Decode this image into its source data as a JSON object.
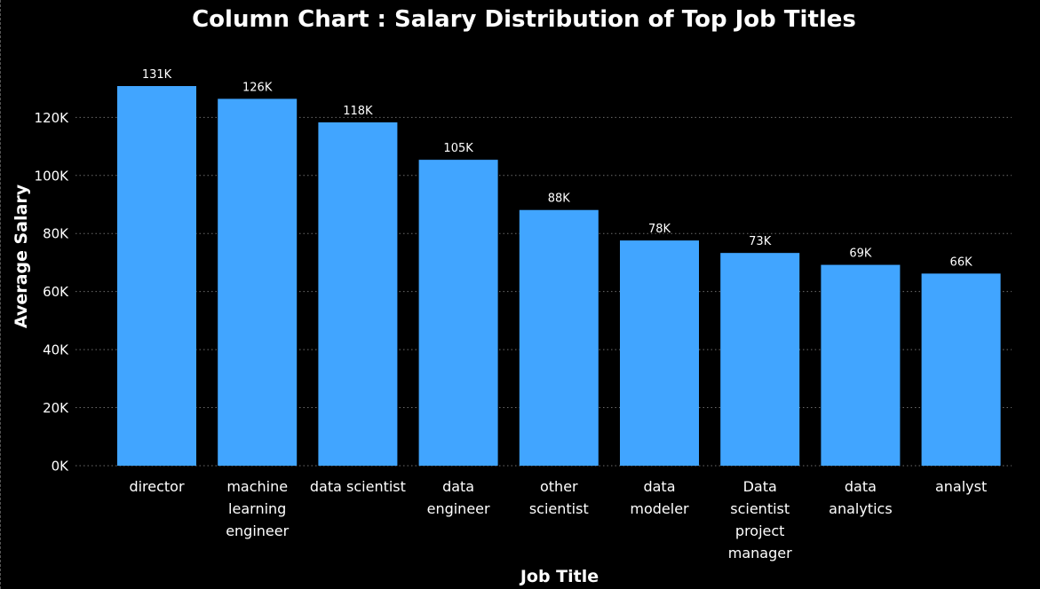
{
  "chart_data": {
    "type": "bar",
    "title": "Column Chart : Salary Distribution of Top Job Titles",
    "xlabel": "Job Title",
    "ylabel": "Average Salary",
    "categories": [
      "director",
      "machine learning engineer",
      "data scientist",
      "data engineer",
      "other scientist",
      "data modeler",
      "Data scientist project manager",
      "data analytics",
      "analyst"
    ],
    "category_lines": [
      [
        "director"
      ],
      [
        "machine",
        "learning",
        "engineer"
      ],
      [
        "data scientist"
      ],
      [
        "data",
        "engineer"
      ],
      [
        "other",
        "scientist"
      ],
      [
        "data",
        "modeler"
      ],
      [
        "Data",
        "scientist",
        "project",
        "manager"
      ],
      [
        "data",
        "analytics"
      ],
      [
        "analyst"
      ]
    ],
    "values": [
      130800,
      126400,
      118300,
      105400,
      88100,
      77600,
      73300,
      69200,
      66200
    ],
    "data_labels": [
      "131K",
      "126K",
      "118K",
      "105K",
      "88K",
      "78K",
      "73K",
      "69K",
      "66K"
    ],
    "ylim": [
      0,
      136000
    ],
    "yticks": [
      0,
      20000,
      40000,
      60000,
      80000,
      100000,
      120000
    ],
    "ytick_labels": [
      "0K",
      "20K",
      "40K",
      "60K",
      "80K",
      "100K",
      "120K"
    ],
    "grid": true,
    "colors": {
      "background": "#000000",
      "bar": "#41a5ff",
      "text": "#ffffff",
      "grid": "#6b6b6b"
    }
  }
}
